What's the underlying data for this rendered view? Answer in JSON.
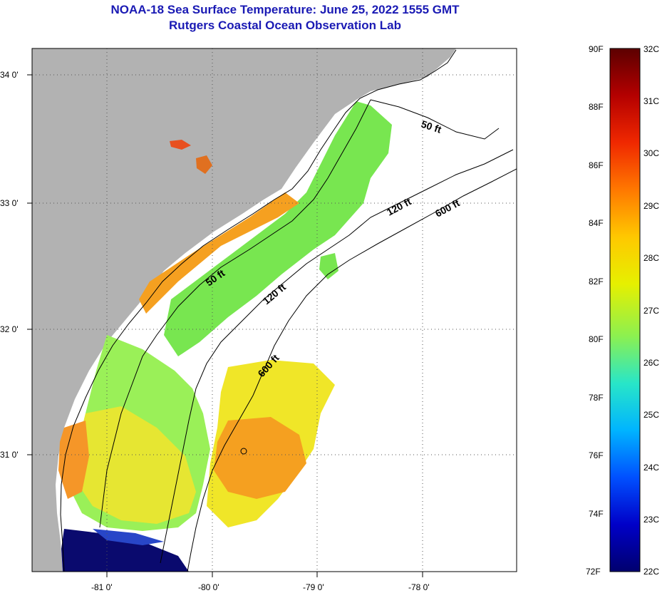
{
  "title": {
    "line1": "NOAA-18 Sea Surface Temperature:  June 25, 2022 1555 GMT",
    "line2": "Rutgers Coastal Ocean Observation Lab"
  },
  "map": {
    "lat_labels": [
      "34 0'",
      "33 0'",
      "32 0'",
      "31 0'"
    ],
    "lon_labels": [
      "-81 0'",
      "-80 0'",
      "-79 0'",
      "-78 0'"
    ],
    "contour_labels": [
      "50 ft",
      "120 ft",
      "600 ft",
      "50 ft",
      "120 ft",
      "600 ft"
    ]
  },
  "colorbar": {
    "f_labels": [
      "90F",
      "88F",
      "86F",
      "84F",
      "82F",
      "80F",
      "78F",
      "76F",
      "74F",
      "72F"
    ],
    "c_labels": [
      "32C",
      "31C",
      "30C",
      "29C",
      "28C",
      "27C",
      "26C",
      "25C",
      "24C",
      "23C",
      "22C"
    ],
    "colors": [
      "#5c0000",
      "#b40000",
      "#f02800",
      "#ff7800",
      "#ffc800",
      "#e6f000",
      "#8cf050",
      "#28e6c8",
      "#00b4ff",
      "#0050ff",
      "#0000c8",
      "#00006e"
    ]
  },
  "colors": {
    "land": "#b2b2b2",
    "title": "#1a1ab4",
    "warm_orange": "#f5a020",
    "yellow": "#f0e628",
    "green": "#78e650",
    "dark_blue": "#0a0a6e"
  }
}
